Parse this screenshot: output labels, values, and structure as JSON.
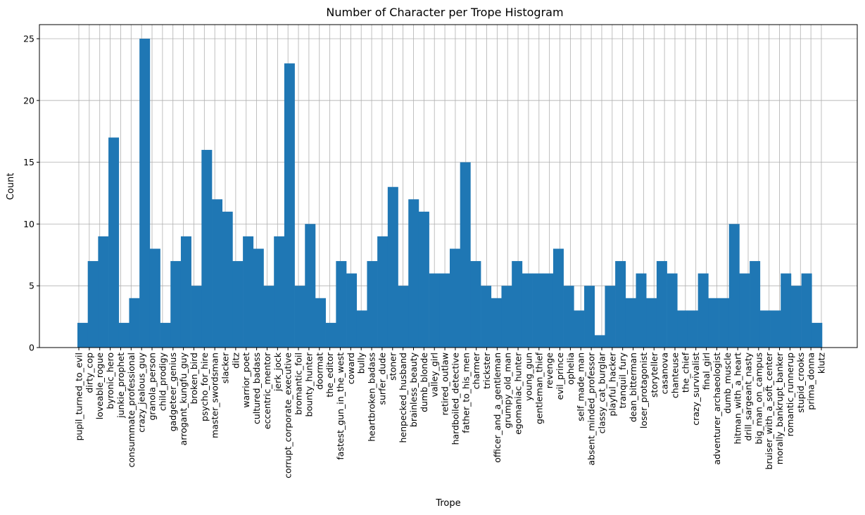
{
  "chart_data": {
    "type": "bar",
    "title": "Number of Character per Trope Histogram",
    "xlabel": "Trope",
    "ylabel": "Count",
    "ylim": [
      0,
      26.2
    ],
    "yticks": [
      0,
      5,
      10,
      15,
      20,
      25
    ],
    "grid": true,
    "bar_color": "#1f77b4",
    "grid_color": "#b0b0b0",
    "tick_categories": [
      "pupil_turned_to_evil",
      "dirty_cop",
      "loveable_rogue",
      "byronic_hero",
      "junkie_prophet",
      "consummate_professional",
      "crazy_jealous_guy",
      "granola_person",
      "child_prodigy",
      "gadgeteer_genius",
      "arrogant_kungfu_guy",
      "broken_bird",
      "psycho_for_hire",
      "master_swordsman",
      "slacker",
      "ditz",
      "warrior_poet",
      "cultured_badass",
      "eccentric_mentor",
      "jerk_jock",
      "corrupt_corporate_executive",
      "bromantic_foil",
      "bounty_hunter",
      "doormat",
      "the_editor",
      "fastest_gun_in_the_west",
      "coward",
      "bully",
      "heartbroken_badass",
      "surfer_dude",
      "stoner",
      "henpecked_husband",
      "brainless_beauty",
      "dumb_blonde",
      "valley_girl",
      "retired_outlaw",
      "hardboiled_detective",
      "father_to_his_men",
      "charmer",
      "trickster",
      "officer_and_a_gentleman",
      "grumpy_old_man",
      "egomaniac_hunter",
      "young_gun",
      "gentleman_thief",
      "revenge",
      "evil_prince",
      "ophelia",
      "self_made_man",
      "absent_minded_professor",
      "classy_cat_burglar",
      "playful_hacker",
      "tranquil_fury",
      "dean_bitterman",
      "loser_protagonist",
      "storyteller",
      "casanova",
      "chanteuse",
      "the_chief",
      "crazy_survivalist",
      "final_girl",
      "adventurer_archaeologist",
      "dumb_muscle",
      "hitman_with_a_heart",
      "drill_sargeant_nasty",
      "big_man_on_campus",
      "bruiser_with_a_soft_center",
      "morally_bankrupt_banker",
      "romantic_runnerup",
      "stupid_crooks",
      "prima_donna",
      "klutz"
    ],
    "values": [
      2,
      7,
      9,
      17,
      2,
      4,
      25,
      8,
      2,
      7,
      9,
      5,
      16,
      12,
      11,
      7,
      9,
      8,
      5,
      9,
      23,
      5,
      10,
      4,
      2,
      7,
      6,
      3,
      7,
      9,
      13,
      5,
      12,
      11,
      6,
      6,
      8,
      15,
      7,
      5,
      4,
      5,
      7,
      6,
      6,
      6,
      8,
      5,
      3,
      5,
      1,
      5,
      7,
      4,
      6,
      4,
      7,
      6,
      3,
      3,
      6,
      4,
      4,
      10,
      6,
      7,
      3,
      3,
      6,
      5,
      6,
      2
    ]
  }
}
